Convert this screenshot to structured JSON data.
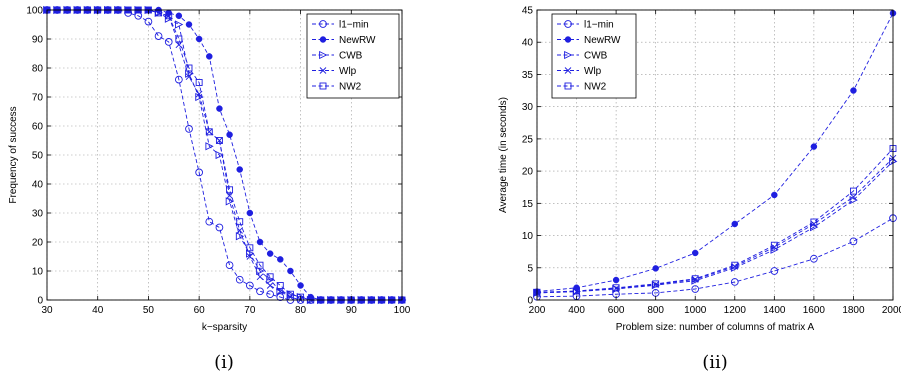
{
  "chart_data": [
    {
      "type": "line",
      "title": "",
      "caption": "(i)",
      "xlabel": "k−sparsity",
      "ylabel": "Frequency of success",
      "xlim": [
        30,
        100
      ],
      "ylim": [
        0,
        100
      ],
      "xticks": [
        30,
        40,
        50,
        60,
        70,
        80,
        90,
        100
      ],
      "yticks": [
        0,
        10,
        20,
        30,
        40,
        50,
        60,
        70,
        80,
        90,
        100
      ],
      "grid": true,
      "legend_position": "top-right",
      "x": [
        30,
        32,
        34,
        36,
        38,
        40,
        42,
        44,
        46,
        48,
        50,
        52,
        54,
        56,
        58,
        60,
        62,
        64,
        66,
        68,
        70,
        72,
        74,
        76,
        78,
        80,
        82,
        84,
        86,
        88,
        90,
        92,
        94,
        96,
        98,
        100
      ],
      "series": [
        {
          "name": "l1−min",
          "marker": "circle-open",
          "values": [
            100,
            100,
            100,
            100,
            100,
            100,
            100,
            100,
            99,
            98,
            96,
            91,
            89,
            76,
            59,
            44,
            27,
            25,
            12,
            7,
            5,
            3,
            2,
            1,
            0,
            0,
            0,
            0,
            0,
            0,
            0,
            0,
            0,
            0,
            0,
            0
          ]
        },
        {
          "name": "NewRW",
          "marker": "dot-filled",
          "values": [
            100,
            100,
            100,
            100,
            100,
            100,
            100,
            100,
            100,
            100,
            100,
            100,
            99,
            98,
            95,
            90,
            84,
            66,
            57,
            45,
            30,
            20,
            16,
            14,
            10,
            5,
            1,
            0,
            0,
            0,
            0,
            0,
            0,
            0,
            0,
            0
          ]
        },
        {
          "name": "CWB",
          "marker": "triangle-right-open",
          "values": [
            100,
            100,
            100,
            100,
            100,
            100,
            100,
            100,
            100,
            100,
            100,
            99,
            97,
            95,
            78,
            70,
            53,
            50,
            34,
            22,
            16,
            10,
            7,
            3,
            2,
            1,
            0,
            0,
            0,
            0,
            0,
            0,
            0,
            0,
            0,
            0
          ]
        },
        {
          "name": "Wlp",
          "marker": "x",
          "values": [
            100,
            100,
            100,
            100,
            100,
            100,
            100,
            100,
            100,
            100,
            100,
            99,
            98,
            88,
            77,
            71,
            58,
            55,
            36,
            24,
            15,
            8,
            5,
            3,
            1,
            0,
            0,
            0,
            0,
            0,
            0,
            0,
            0,
            0,
            0,
            0
          ]
        },
        {
          "name": "NW2",
          "marker": "square-open",
          "values": [
            100,
            100,
            100,
            100,
            100,
            100,
            100,
            100,
            100,
            100,
            100,
            99,
            98,
            90,
            80,
            75,
            58,
            55,
            38,
            27,
            18,
            12,
            8,
            5,
            2,
            1,
            0,
            0,
            0,
            0,
            0,
            0,
            0,
            0,
            0,
            0
          ]
        }
      ]
    },
    {
      "type": "line",
      "title": "",
      "caption": "(ii)",
      "xlabel": "Problem size: number of columns of matrix A",
      "ylabel": "Average time (in seconds)",
      "xlim": [
        200,
        2000
      ],
      "ylim": [
        0,
        45
      ],
      "xticks": [
        200,
        400,
        600,
        800,
        1000,
        1200,
        1400,
        1600,
        1800,
        2000
      ],
      "yticks": [
        0,
        5,
        10,
        15,
        20,
        25,
        30,
        35,
        40,
        45
      ],
      "grid": true,
      "legend_position": "top-left",
      "x": [
        200,
        400,
        600,
        800,
        1000,
        1200,
        1400,
        1600,
        1800,
        2000
      ],
      "series": [
        {
          "name": "l1−min",
          "marker": "circle-open",
          "values": [
            0.5,
            0.6,
            0.9,
            1.1,
            1.7,
            2.8,
            4.5,
            6.4,
            9.1,
            12.7
          ]
        },
        {
          "name": "NewRW",
          "marker": "dot-filled",
          "values": [
            1.3,
            1.9,
            3.1,
            4.9,
            7.3,
            11.8,
            16.3,
            23.8,
            32.5,
            44.5
          ]
        },
        {
          "name": "CWB",
          "marker": "triangle-right-open",
          "values": [
            1.1,
            1.3,
            1.7,
            2.3,
            3.0,
            5.0,
            7.8,
            11.3,
            15.5,
            21.5
          ]
        },
        {
          "name": "Wlp",
          "marker": "x",
          "values": [
            1.1,
            1.3,
            1.8,
            2.4,
            3.2,
            5.2,
            8.2,
            11.8,
            16.0,
            22.0
          ]
        },
        {
          "name": "NW2",
          "marker": "square-open",
          "values": [
            1.2,
            1.4,
            1.9,
            2.5,
            3.3,
            5.4,
            8.5,
            12.1,
            16.9,
            23.5
          ]
        }
      ]
    }
  ],
  "colors": {
    "series": "#1f1fe0",
    "grid": "#9a9a9a",
    "axis": "#000000"
  }
}
